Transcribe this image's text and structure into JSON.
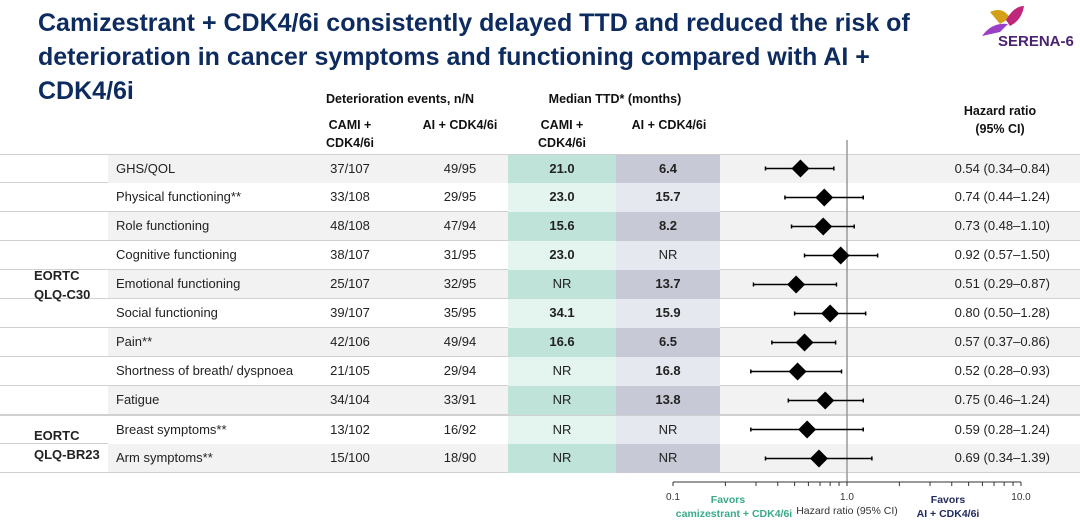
{
  "title": "Camizestrant + CDK4/6i consistently delayed TTD and reduced the risk of deterioration in cancer symptoms and functioning compared with AI + CDK4/6i",
  "logo": {
    "text": "SERENA-6",
    "colors": [
      "#d4a017",
      "#c0267a",
      "#9b3fc7",
      "#4a2370"
    ]
  },
  "headers": {
    "events": "Deterioration events, n/N",
    "median": "Median TTD* (months)",
    "cami": "CAMI + CDK4/6i",
    "ai": "AI + CDK4/6i",
    "hr": "Hazard ratio (95% CI)"
  },
  "groups": [
    {
      "label": "EORTC QLQ-C30"
    },
    {
      "label": "EORTC QLQ-BR23"
    }
  ],
  "colors": {
    "cami_dark": "#bfe3d8",
    "cami_light": "#e4f4ef",
    "ai_dark": "#c8c9d6",
    "ai_light": "#e5e8ee",
    "row_gray": "#f2f2f2",
    "favors_cami": "#3aaa8a",
    "favors_ai": "#1f2a5a"
  },
  "chart_data": {
    "type": "forest",
    "xscale": "log",
    "xlim": [
      0.1,
      10.0
    ],
    "xticks": [
      "0.1",
      "1.0",
      "10.0"
    ],
    "xlabel": "Hazard ratio (95% CI)",
    "reference_line": 1.0,
    "favors_left": "Favors camizestrant + CDK4/6i",
    "favors_right": "Favors AI + CDK4/6i",
    "rows": [
      {
        "group": 0,
        "label": "GHS/QOL",
        "cami_events": "37/107",
        "ai_events": "49/95",
        "cami_median": "21.0",
        "ai_median": "6.4",
        "hr": 0.54,
        "lo": 0.34,
        "hi": 0.84,
        "hr_text": "0.54 (0.34–0.84)"
      },
      {
        "group": 0,
        "label": "Physical functioning**",
        "cami_events": "33/108",
        "ai_events": "29/95",
        "cami_median": "23.0",
        "ai_median": "15.7",
        "hr": 0.74,
        "lo": 0.44,
        "hi": 1.24,
        "hr_text": "0.74 (0.44–1.24)"
      },
      {
        "group": 0,
        "label": "Role functioning",
        "cami_events": "48/108",
        "ai_events": "47/94",
        "cami_median": "15.6",
        "ai_median": "8.2",
        "hr": 0.73,
        "lo": 0.48,
        "hi": 1.1,
        "hr_text": "0.73 (0.48–1.10)"
      },
      {
        "group": 0,
        "label": "Cognitive functioning",
        "cami_events": "38/107",
        "ai_events": "31/95",
        "cami_median": "23.0",
        "ai_median": "NR",
        "hr": 0.92,
        "lo": 0.57,
        "hi": 1.5,
        "hr_text": "0.92 (0.57–1.50)"
      },
      {
        "group": 0,
        "label": "Emotional functioning",
        "cami_events": "25/107",
        "ai_events": "32/95",
        "cami_median": "NR",
        "ai_median": "13.7",
        "hr": 0.51,
        "lo": 0.29,
        "hi": 0.87,
        "hr_text": "0.51 (0.29–0.87)"
      },
      {
        "group": 0,
        "label": "Social functioning",
        "cami_events": "39/107",
        "ai_events": "35/95",
        "cami_median": "34.1",
        "ai_median": "15.9",
        "hr": 0.8,
        "lo": 0.5,
        "hi": 1.28,
        "hr_text": "0.80 (0.50–1.28)"
      },
      {
        "group": 0,
        "label": "Pain**",
        "cami_events": "42/106",
        "ai_events": "49/94",
        "cami_median": "16.6",
        "ai_median": "6.5",
        "hr": 0.57,
        "lo": 0.37,
        "hi": 0.86,
        "hr_text": "0.57 (0.37–0.86)"
      },
      {
        "group": 0,
        "label": "Shortness of breath/ dyspnoea",
        "cami_events": "21/105",
        "ai_events": "29/94",
        "cami_median": "NR",
        "ai_median": "16.8",
        "hr": 0.52,
        "lo": 0.28,
        "hi": 0.93,
        "hr_text": "0.52 (0.28–0.93)"
      },
      {
        "group": 0,
        "label": "Fatigue",
        "cami_events": "34/104",
        "ai_events": "33/91",
        "cami_median": "NR",
        "ai_median": "13.8",
        "hr": 0.75,
        "lo": 0.46,
        "hi": 1.24,
        "hr_text": "0.75 (0.46–1.24)"
      },
      {
        "group": 1,
        "label": "Breast symptoms**",
        "cami_events": "13/102",
        "ai_events": "16/92",
        "cami_median": "NR",
        "ai_median": "NR",
        "hr": 0.59,
        "lo": 0.28,
        "hi": 1.24,
        "hr_text": "0.59 (0.28–1.24)"
      },
      {
        "group": 1,
        "label": "Arm symptoms**",
        "cami_events": "15/100",
        "ai_events": "18/90",
        "cami_median": "NR",
        "ai_median": "NR",
        "hr": 0.69,
        "lo": 0.34,
        "hi": 1.39,
        "hr_text": "0.69 (0.34–1.39)"
      }
    ]
  }
}
